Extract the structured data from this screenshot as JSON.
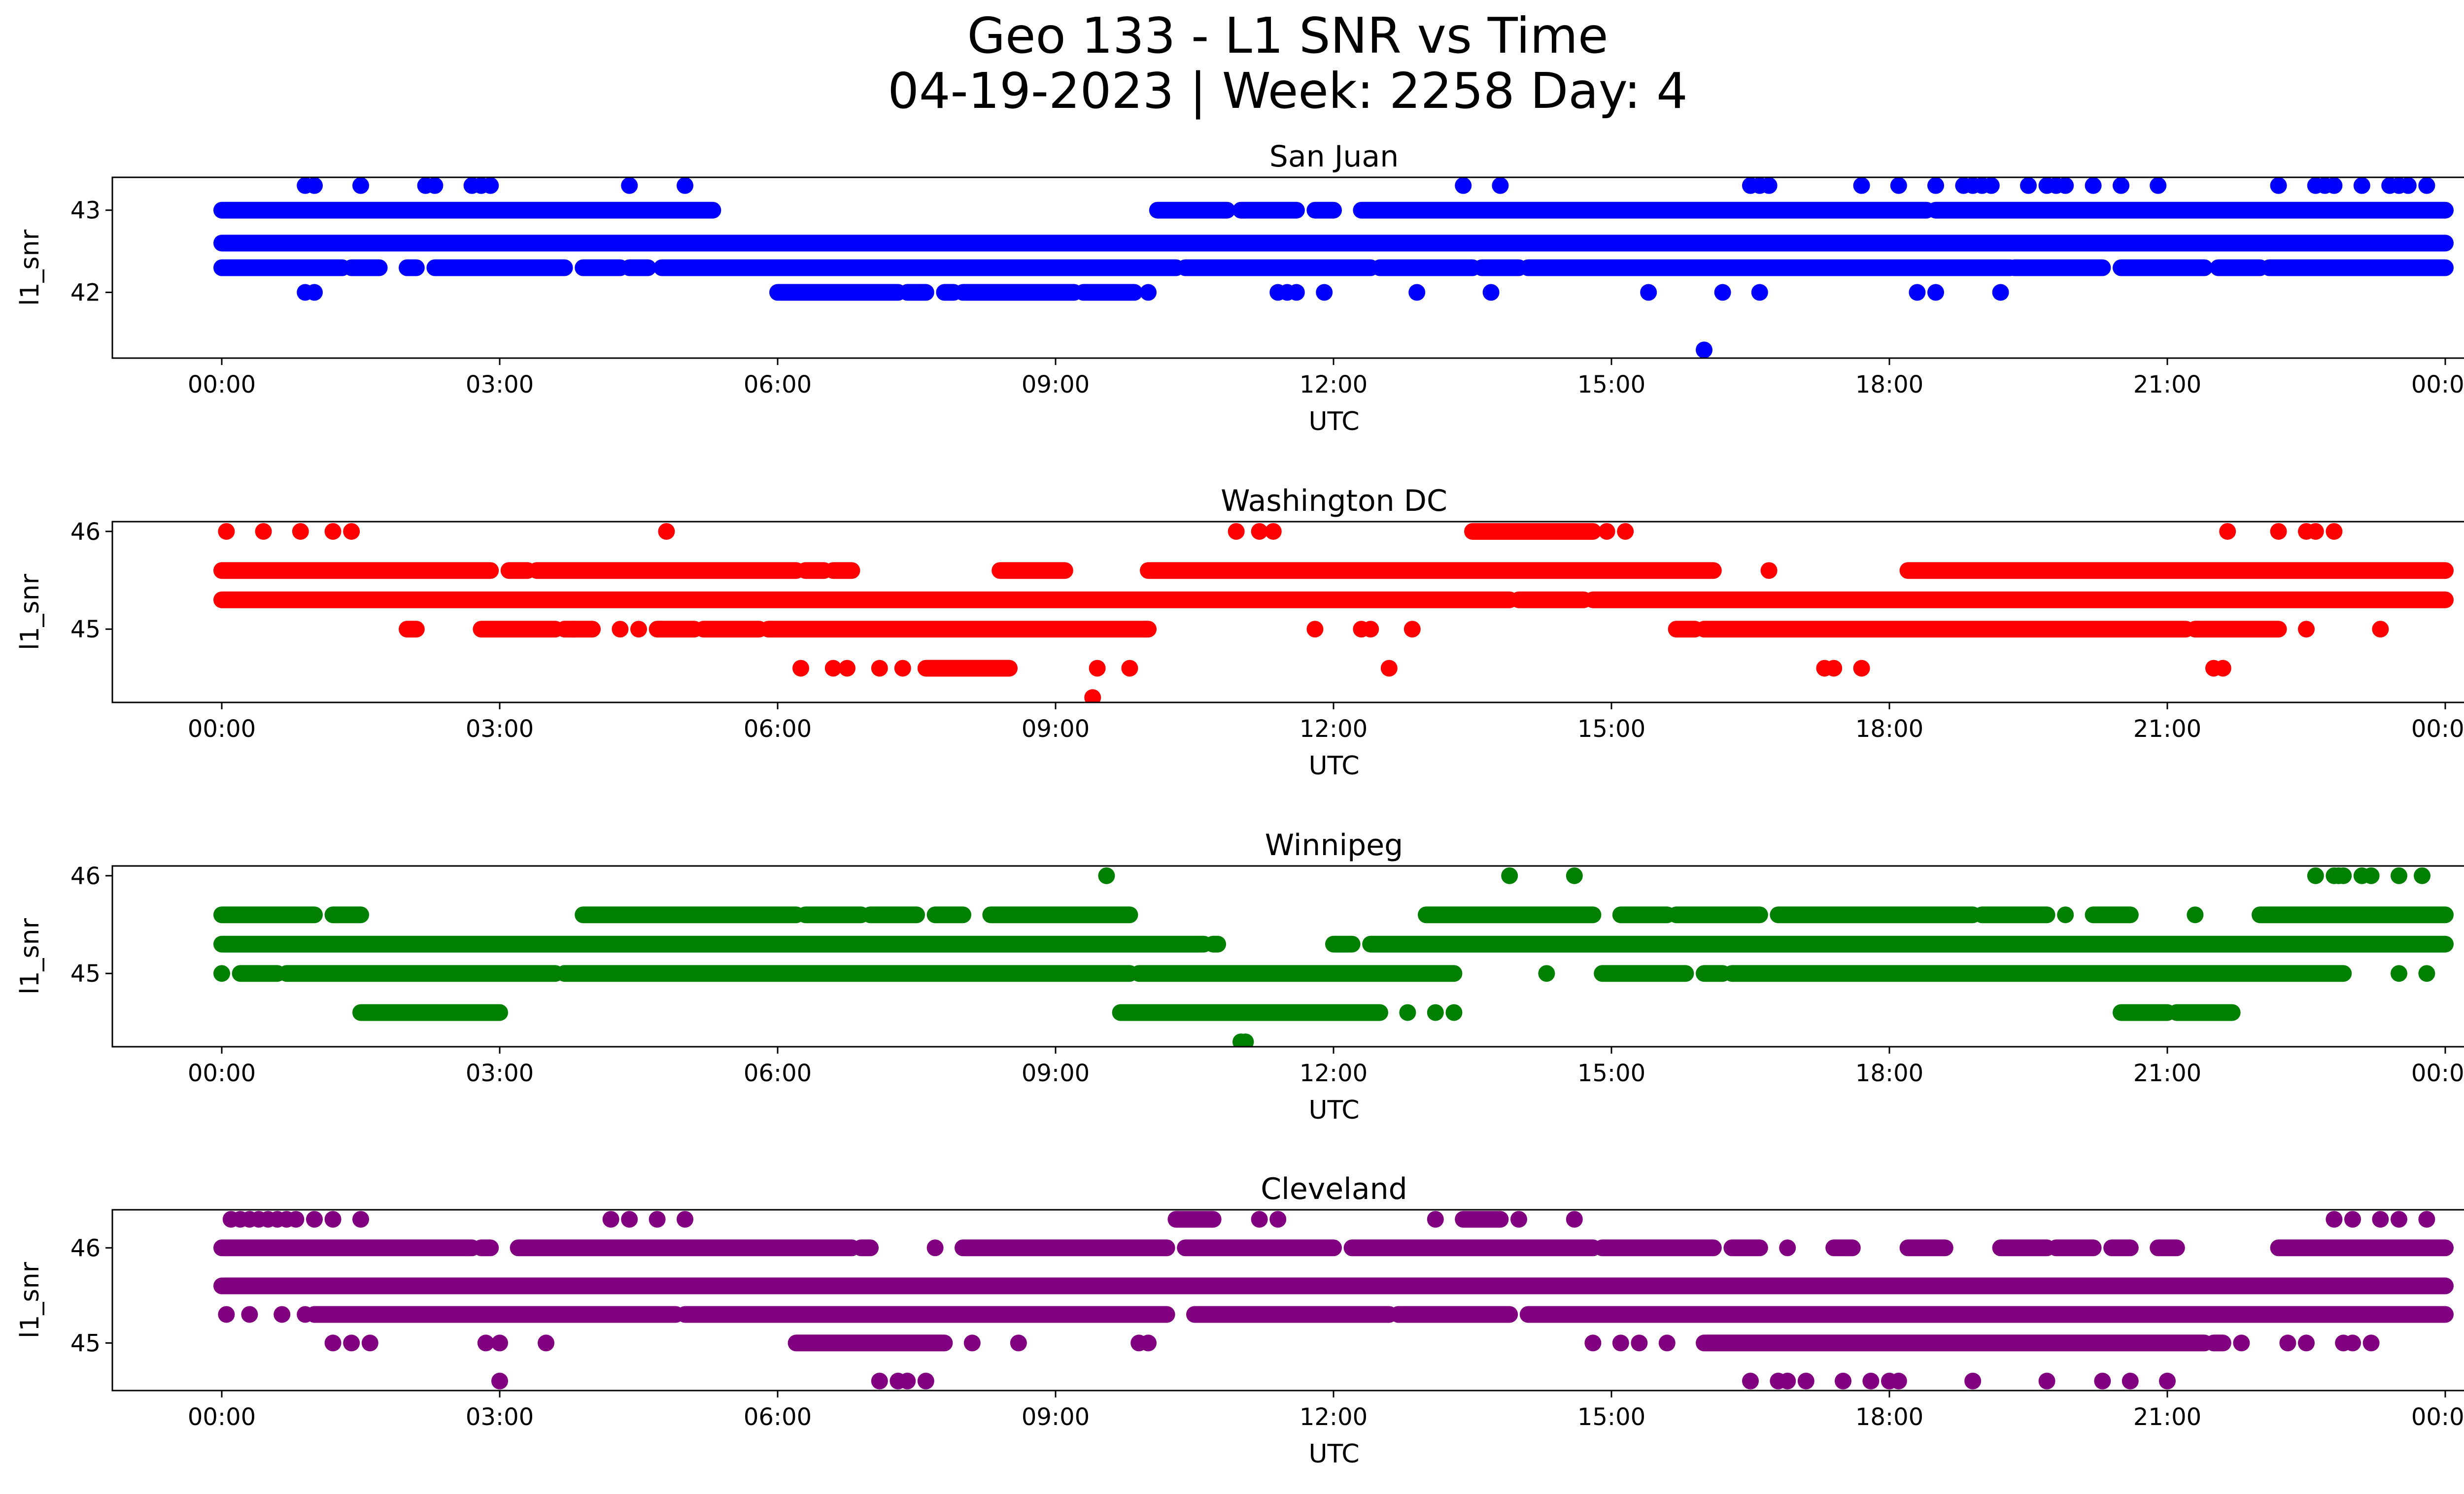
{
  "figure": {
    "title_line1": "Geo 133 - L1 SNR vs Time",
    "title_line2": "04-19-2023 | Week: 2258 Day: 4"
  },
  "chart_data": [
    {
      "type": "scatter",
      "title": "San Juan",
      "xlabel": "UTC",
      "ylabel": "l1_snr",
      "color": "#0000ff",
      "x_ticks": [
        "00:00",
        "03:00",
        "06:00",
        "09:00",
        "12:00",
        "15:00",
        "18:00",
        "21:00",
        "00:00"
      ],
      "x_range_hours": [
        0,
        24
      ],
      "y_ticks": [
        42,
        43
      ],
      "ylim": [
        41.2,
        43.4
      ],
      "grid": false,
      "bands": [
        {
          "y": 43.0,
          "segments": [
            [
              0.0,
              5.3
            ],
            [
              10.1,
              10.85
            ],
            [
              11.0,
              11.6
            ],
            [
              11.8,
              12.0
            ],
            [
              12.3,
              18.4
            ],
            [
              18.5,
              24.0
            ]
          ]
        },
        {
          "y": 42.6,
          "segments": [
            [
              0.0,
              24.0
            ]
          ]
        },
        {
          "y": 42.3,
          "segments": [
            [
              0.0,
              1.3
            ],
            [
              1.4,
              1.7
            ],
            [
              2.0,
              2.1
            ],
            [
              2.3,
              3.7
            ],
            [
              3.9,
              4.3
            ],
            [
              4.4,
              4.6
            ],
            [
              4.75,
              10.3
            ],
            [
              10.4,
              12.4
            ],
            [
              12.5,
              13.5
            ],
            [
              13.6,
              14.0
            ],
            [
              14.1,
              19.3
            ],
            [
              19.35,
              20.3
            ],
            [
              20.5,
              21.4
            ],
            [
              21.55,
              22.0
            ],
            [
              22.1,
              24.0
            ]
          ]
        },
        {
          "y": 42.0,
          "segments": [
            [
              6.0,
              7.3
            ],
            [
              7.4,
              7.6
            ],
            [
              7.8,
              7.9
            ],
            [
              8.0,
              9.2
            ],
            [
              9.3,
              9.6
            ],
            [
              9.6,
              9.85
            ]
          ]
        }
      ],
      "points": [
        {
          "y": 43.3,
          "x": [
            0.9,
            1.0,
            1.5,
            2.2,
            2.3,
            2.7,
            2.8,
            2.9,
            4.4,
            5.0,
            13.4,
            13.8,
            16.5,
            16.6,
            16.7,
            17.7,
            18.1,
            18.5,
            18.8,
            18.9,
            19.0,
            19.1,
            19.5,
            19.7,
            19.8,
            19.9,
            20.2,
            20.5,
            20.9,
            22.2,
            22.6,
            22.7,
            22.8,
            23.1,
            23.4,
            23.5,
            23.6,
            23.8
          ]
        },
        {
          "y": 42.0,
          "x": [
            0.9,
            1.0,
            10.0,
            11.4,
            11.5,
            11.6,
            11.9,
            12.9,
            13.7,
            15.4,
            16.2,
            16.6,
            18.3,
            18.5,
            19.2
          ]
        },
        {
          "y": 41.3,
          "x": [
            16.0
          ]
        }
      ]
    },
    {
      "type": "scatter",
      "title": "Washington DC",
      "xlabel": "UTC",
      "ylabel": "l1_snr",
      "color": "#ff0000",
      "x_ticks": [
        "00:00",
        "03:00",
        "06:00",
        "09:00",
        "12:00",
        "15:00",
        "18:00",
        "21:00",
        "00:00"
      ],
      "x_range_hours": [
        0,
        24
      ],
      "y_ticks": [
        45,
        46
      ],
      "ylim": [
        44.25,
        46.1
      ],
      "grid": false,
      "bands": [
        {
          "y": 45.6,
          "segments": [
            [
              0.0,
              2.9
            ],
            [
              3.1,
              3.3
            ],
            [
              3.4,
              6.2
            ],
            [
              6.3,
              6.5
            ],
            [
              6.6,
              6.8
            ],
            [
              8.4,
              9.1
            ],
            [
              10.0,
              16.1
            ],
            [
              18.2,
              24.0
            ]
          ]
        },
        {
          "y": 45.3,
          "segments": [
            [
              0.0,
              13.9
            ],
            [
              14.0,
              14.7
            ],
            [
              14.8,
              24.0
            ]
          ]
        },
        {
          "y": 45.0,
          "segments": [
            [
              2.0,
              2.1
            ],
            [
              2.8,
              3.6
            ],
            [
              3.7,
              4.0
            ],
            [
              4.7,
              5.1
            ],
            [
              5.2,
              5.8
            ],
            [
              5.9,
              10.0
            ],
            [
              15.7,
              15.9
            ],
            [
              16.0,
              21.2
            ],
            [
              21.3,
              22.2
            ]
          ]
        },
        {
          "y": 44.6,
          "segments": [
            [
              7.6,
              8.5
            ]
          ]
        },
        {
          "y": 46.0,
          "segments": [
            [
              13.5,
              14.8
            ]
          ]
        }
      ],
      "points": [
        {
          "y": 46.0,
          "x": [
            0.05,
            0.45,
            0.85,
            1.2,
            1.4,
            4.8,
            10.95,
            11.2,
            11.35,
            14.95,
            15.15,
            21.65,
            22.2,
            22.5,
            22.6,
            22.8
          ]
        },
        {
          "y": 45.6,
          "x": [
            16.7
          ]
        },
        {
          "y": 45.0,
          "x": [
            3.8,
            4.3,
            4.5,
            11.8,
            12.3,
            12.4,
            12.85,
            22.5,
            23.3
          ]
        },
        {
          "y": 44.6,
          "x": [
            6.25,
            6.6,
            6.75,
            7.1,
            7.35,
            9.45,
            9.8,
            12.6,
            17.3,
            17.4,
            17.7,
            21.5,
            21.6
          ]
        },
        {
          "y": 44.3,
          "x": [
            9.4
          ]
        }
      ]
    },
    {
      "type": "scatter",
      "title": "Winnipeg",
      "xlabel": "UTC",
      "ylabel": "l1_snr",
      "color": "#008000",
      "x_ticks": [
        "00:00",
        "03:00",
        "06:00",
        "09:00",
        "12:00",
        "15:00",
        "18:00",
        "21:00",
        "00:00"
      ],
      "x_range_hours": [
        0,
        24
      ],
      "y_ticks": [
        45,
        46
      ],
      "ylim": [
        44.25,
        46.1
      ],
      "grid": false,
      "bands": [
        {
          "y": 45.6,
          "segments": [
            [
              0.0,
              1.0
            ],
            [
              1.2,
              1.5
            ],
            [
              3.9,
              6.2
            ],
            [
              6.3,
              6.9
            ],
            [
              7.0,
              7.5
            ],
            [
              7.7,
              8.0
            ],
            [
              8.3,
              9.8
            ],
            [
              13.0,
              14.8
            ],
            [
              15.1,
              15.6
            ],
            [
              15.7,
              16.6
            ],
            [
              16.8,
              18.9
            ],
            [
              19.0,
              19.7
            ],
            [
              20.2,
              20.6
            ],
            [
              22.0,
              24.0
            ]
          ]
        },
        {
          "y": 45.3,
          "segments": [
            [
              0.0,
              10.6
            ],
            [
              10.7,
              10.75
            ],
            [
              12.0,
              12.2
            ],
            [
              12.4,
              24.0
            ]
          ]
        },
        {
          "y": 45.0,
          "segments": [
            [
              0.2,
              0.6
            ],
            [
              0.7,
              3.6
            ],
            [
              3.7,
              9.8
            ],
            [
              9.9,
              13.3
            ],
            [
              14.9,
              15.8
            ],
            [
              16.0,
              16.2
            ],
            [
              16.3,
              22.9
            ]
          ]
        },
        {
          "y": 44.6,
          "segments": [
            [
              1.5,
              3.0
            ],
            [
              9.7,
              12.5
            ],
            [
              20.5,
              21.0
            ],
            [
              21.1,
              21.7
            ]
          ]
        }
      ],
      "points": [
        {
          "y": 46.0,
          "x": [
            9.55,
            13.9,
            14.6,
            22.6,
            22.8,
            22.85,
            22.9,
            23.1,
            23.2,
            23.5,
            23.75
          ]
        },
        {
          "y": 45.6,
          "x": [
            19.9,
            21.3
          ]
        },
        {
          "y": 45.0,
          "x": [
            0.0,
            14.3,
            23.5,
            23.8
          ]
        },
        {
          "y": 44.6,
          "x": [
            12.8,
            13.1,
            13.3
          ]
        },
        {
          "y": 44.3,
          "x": [
            11.0,
            11.05
          ]
        }
      ]
    },
    {
      "type": "scatter",
      "title": "Cleveland",
      "xlabel": "UTC",
      "ylabel": "l1_snr",
      "color": "#800080",
      "x_ticks": [
        "00:00",
        "03:00",
        "06:00",
        "09:00",
        "12:00",
        "15:00",
        "18:00",
        "21:00",
        "00:00"
      ],
      "x_range_hours": [
        0,
        24
      ],
      "y_ticks": [
        45,
        46
      ],
      "ylim": [
        44.5,
        46.4
      ],
      "grid": false,
      "bands": [
        {
          "y": 46.0,
          "segments": [
            [
              0.0,
              2.7
            ],
            [
              2.8,
              2.9
            ],
            [
              3.2,
              6.8
            ],
            [
              6.9,
              7.0
            ],
            [
              8.0,
              10.2
            ],
            [
              10.4,
              12.0
            ],
            [
              12.2,
              14.8
            ],
            [
              14.9,
              16.1
            ],
            [
              16.3,
              16.6
            ],
            [
              17.4,
              17.6
            ],
            [
              18.2,
              18.6
            ],
            [
              19.2,
              19.7
            ],
            [
              19.8,
              20.2
            ],
            [
              20.4,
              20.6
            ],
            [
              20.9,
              21.1
            ],
            [
              22.2,
              24.0
            ]
          ]
        },
        {
          "y": 45.6,
          "segments": [
            [
              0.0,
              24.0
            ]
          ]
        },
        {
          "y": 45.3,
          "segments": [
            [
              1.0,
              4.9
            ],
            [
              5.0,
              10.2
            ],
            [
              10.5,
              12.6
            ],
            [
              12.7,
              13.9
            ],
            [
              14.1,
              24.0
            ]
          ]
        },
        {
          "y": 45.0,
          "segments": [
            [
              6.2,
              7.8
            ],
            [
              16.0,
              21.4
            ],
            [
              21.5,
              21.6
            ]
          ]
        },
        {
          "y": 46.3,
          "segments": [
            [
              10.3,
              10.7
            ],
            [
              13.4,
              13.8
            ]
          ]
        }
      ],
      "points": [
        {
          "y": 46.3,
          "x": [
            0.1,
            0.2,
            0.3,
            0.4,
            0.5,
            0.6,
            0.7,
            0.8,
            1.0,
            1.2,
            1.5,
            4.2,
            4.4,
            4.7,
            5.0,
            11.2,
            11.4,
            13.1,
            14.0,
            14.6,
            22.8,
            23.0,
            23.3,
            23.5,
            23.8
          ]
        },
        {
          "y": 46.0,
          "x": [
            7.7,
            16.9
          ]
        },
        {
          "y": 45.3,
          "x": [
            0.05,
            0.3,
            0.65,
            0.9,
            12.7,
            13.3
          ]
        },
        {
          "y": 45.0,
          "x": [
            1.2,
            1.4,
            1.6,
            2.85,
            3.0,
            3.5,
            8.1,
            8.6,
            9.9,
            10.0,
            14.8,
            15.1,
            15.3,
            15.6,
            21.8,
            22.3,
            22.5,
            22.9,
            23.0,
            23.2
          ]
        },
        {
          "y": 44.6,
          "x": [
            3.0,
            7.1,
            7.3,
            7.4,
            7.6,
            16.5,
            16.8,
            16.9,
            17.1,
            17.5,
            17.8,
            18.0,
            18.1,
            18.9,
            19.7,
            20.3,
            20.6,
            21.0
          ]
        }
      ]
    }
  ]
}
